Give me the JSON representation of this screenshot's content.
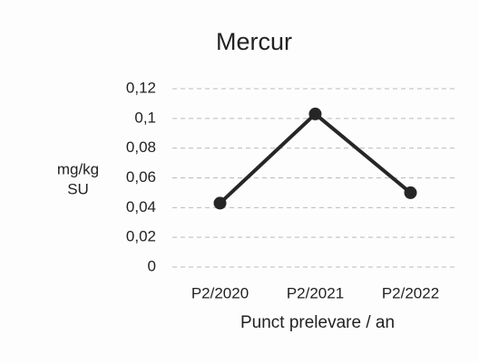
{
  "chart_data": {
    "type": "line",
    "title": "Mercur",
    "y_label": [
      "mg/kg",
      "SU"
    ],
    "x_label": "Punct prelevare / an",
    "categories": [
      "P2/2020",
      "P2/2021",
      "P2/2022"
    ],
    "series": [
      {
        "name": "Mercur",
        "color": "#262626",
        "values": [
          0.043,
          0.103,
          0.05
        ]
      }
    ],
    "ylim": [
      0,
      0.12
    ],
    "yticks": [
      0,
      {
        "value": 0.02,
        "label": "0,02"
      },
      {
        "value": 0.04,
        "label": "0,04"
      },
      {
        "value": 0.06,
        "label": "0,06"
      },
      {
        "value": 0.08,
        "label": "0,08"
      },
      {
        "value": 0.1,
        "label": "0,1"
      },
      {
        "value": 0.12,
        "label": "0,12"
      }
    ],
    "grid": true
  }
}
